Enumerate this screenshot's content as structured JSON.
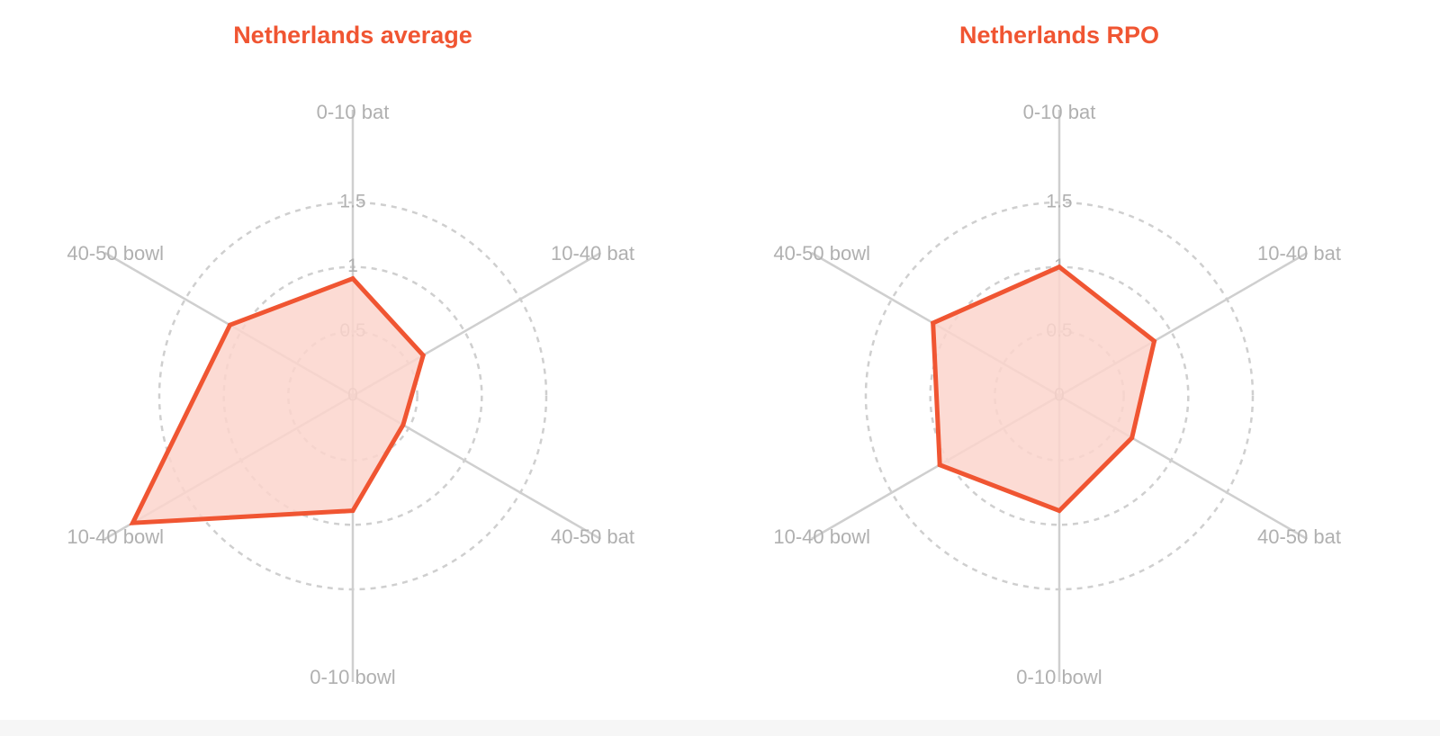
{
  "colors": {
    "accent": "#f05532",
    "fill": "#fcd5cc",
    "grid": "#cfcfcf",
    "label": "#b0b0b0"
  },
  "chart_data": [
    {
      "type": "radar",
      "title": "Netherlands average",
      "axes": [
        "0-10 bat",
        "10-40 bat",
        "40-50 bat",
        "0-10 bowl",
        "10-40 bowl",
        "40-50 bowl"
      ],
      "ring_ticks": [
        "0",
        "0.5",
        "1",
        "1.5"
      ],
      "ring_values": [
        0.5,
        1,
        1.5
      ],
      "max": 1.5,
      "values": [
        0.91,
        0.63,
        0.45,
        0.89,
        1.97,
        1.1
      ],
      "grid": true,
      "legend": false
    },
    {
      "type": "radar",
      "title": "Netherlands RPO",
      "axes": [
        "0-10 bat",
        "10-40 bat",
        "40-50 bat",
        "0-10 bowl",
        "10-40 bowl",
        "40-50 bowl"
      ],
      "ring_ticks": [
        "0",
        "0.5",
        "1",
        "1.5"
      ],
      "ring_values": [
        0.5,
        1,
        1.5
      ],
      "max": 1.5,
      "values": [
        1.0,
        0.85,
        0.65,
        0.89,
        1.07,
        1.13
      ],
      "grid": true,
      "legend": false
    }
  ]
}
